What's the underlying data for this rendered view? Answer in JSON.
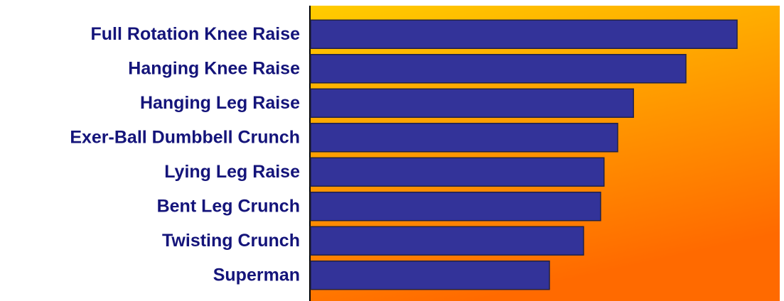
{
  "chart_data": {
    "type": "barh",
    "categories": [
      "Full Rotation Knee Raise",
      "Hanging Knee Raise",
      "Hanging Leg Raise",
      "Exer-Ball Dumbbell Crunch",
      "Lying Leg Raise",
      "Bent Leg Crunch",
      "Twisting Crunch",
      "Superman"
    ],
    "values": [
      100,
      88,
      75.7,
      72,
      68.8,
      68,
      64,
      56
    ],
    "color": "#333399",
    "label_color": "#14147a",
    "xlim": [
      0,
      110
    ]
  }
}
